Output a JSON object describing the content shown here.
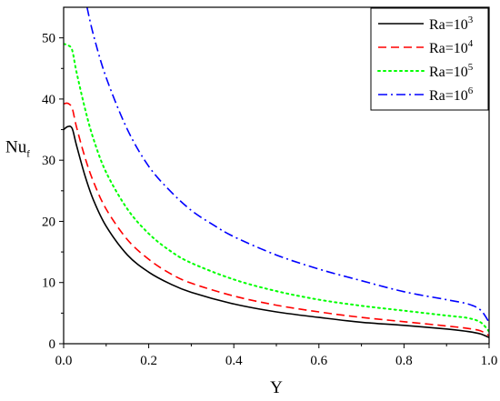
{
  "chart_data": {
    "type": "line",
    "title": "",
    "xlabel": "Y",
    "ylabel": "Nu",
    "ylabel_sub": "f",
    "xlim": [
      0.0,
      1.0
    ],
    "ylim": [
      0,
      55
    ],
    "x_ticks": [
      "0.0",
      "0.2",
      "0.4",
      "0.6",
      "0.8",
      "1.0"
    ],
    "y_ticks": [
      "0",
      "10",
      "20",
      "30",
      "40",
      "50"
    ],
    "x_tick_values": [
      0.0,
      0.2,
      0.4,
      0.6,
      0.8,
      1.0
    ],
    "y_tick_values": [
      0,
      10,
      20,
      30,
      40,
      50
    ],
    "grid": false,
    "legend_position": "top-right",
    "series": [
      {
        "name": "Ra=10",
        "exponent": "3",
        "color": "#000000",
        "dash": "solid",
        "x": [
          0.0,
          0.01,
          0.02,
          0.03,
          0.05,
          0.07,
          0.1,
          0.15,
          0.2,
          0.25,
          0.3,
          0.4,
          0.5,
          0.6,
          0.7,
          0.8,
          0.9,
          0.95,
          0.98,
          1.0
        ],
        "y": [
          35,
          35.5,
          35.2,
          32.5,
          27.5,
          23.5,
          19.2,
          14.5,
          11.7,
          9.8,
          8.4,
          6.5,
          5.2,
          4.3,
          3.5,
          3.0,
          2.4,
          2.0,
          1.6,
          1.0
        ]
      },
      {
        "name": "Ra=10",
        "exponent": "4",
        "color": "#ff0000",
        "dash": "dashed",
        "x": [
          0.0,
          0.01,
          0.02,
          0.03,
          0.05,
          0.07,
          0.1,
          0.15,
          0.2,
          0.25,
          0.3,
          0.4,
          0.5,
          0.6,
          0.7,
          0.8,
          0.9,
          0.95,
          0.98,
          1.0
        ],
        "y": [
          39.2,
          39.3,
          38.5,
          35.5,
          30.5,
          26.5,
          22.0,
          17.0,
          13.8,
          11.5,
          9.9,
          7.8,
          6.3,
          5.2,
          4.3,
          3.6,
          2.9,
          2.5,
          2.1,
          1.3
        ]
      },
      {
        "name": "Ra=10",
        "exponent": "5",
        "color": "#00ff00",
        "dash": "dotted",
        "x": [
          0.0,
          0.01,
          0.02,
          0.03,
          0.05,
          0.07,
          0.1,
          0.15,
          0.2,
          0.25,
          0.3,
          0.4,
          0.5,
          0.6,
          0.7,
          0.8,
          0.9,
          0.95,
          0.98,
          1.0
        ],
        "y": [
          49,
          48.8,
          48,
          44.5,
          38.5,
          33.5,
          28.0,
          22.0,
          18.0,
          15.2,
          13.2,
          10.5,
          8.6,
          7.2,
          6.2,
          5.4,
          4.6,
          4.2,
          3.5,
          2.0
        ]
      },
      {
        "name": "Ra=10",
        "exponent": "6",
        "color": "#0000ff",
        "dash": "dashdot",
        "x": [
          0.055,
          0.07,
          0.1,
          0.15,
          0.2,
          0.25,
          0.3,
          0.35,
          0.4,
          0.5,
          0.6,
          0.7,
          0.8,
          0.9,
          0.95,
          0.98,
          1.0
        ],
        "y": [
          55,
          50.5,
          43.5,
          35.0,
          29.0,
          25.0,
          21.8,
          19.5,
          17.5,
          14.5,
          12.2,
          10.3,
          8.5,
          7.2,
          6.5,
          5.5,
          3.5
        ]
      }
    ]
  }
}
